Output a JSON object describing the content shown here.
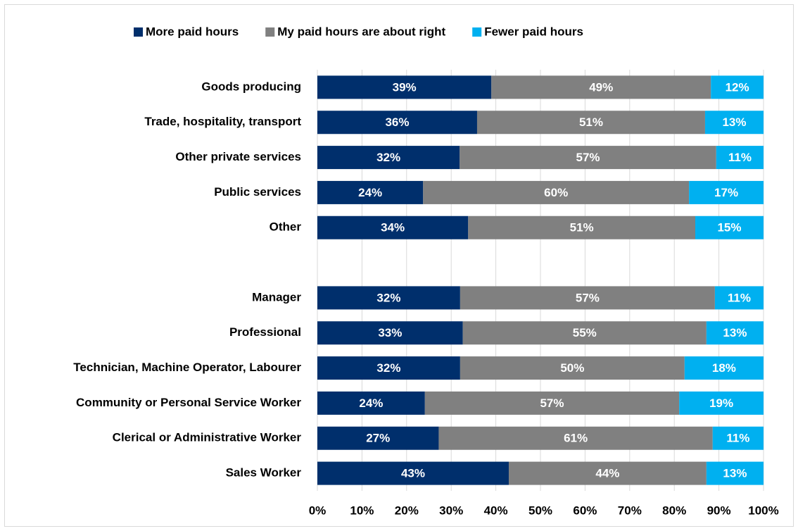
{
  "chart_data": {
    "type": "stacked_barh",
    "categories": [
      "Goods producing",
      "Trade, hospitality, transport",
      "Other private services",
      "Public services",
      "Other",
      null,
      "Manager",
      "Professional",
      "Technician, Machine Operator, Labourer",
      "Community or Personal Service Worker",
      "Clerical or Administrative Worker",
      "Sales Worker"
    ],
    "series": [
      {
        "name": "More paid hours",
        "color": "#002f6c",
        "values": [
          39,
          35.8,
          31.9,
          23.7,
          33.8,
          null,
          32.0,
          32.6,
          32.0,
          24.1,
          27.2,
          42.9
        ],
        "value_labels": [
          "39%",
          "36%",
          "32%",
          "24%",
          "34%",
          null,
          "32%",
          "33%",
          "32%",
          "24%",
          "27%",
          "43%"
        ]
      },
      {
        "name": "My paid hours are about right",
        "color": "#808080",
        "values": [
          49.2,
          51.1,
          57.5,
          59.6,
          50.9,
          null,
          57.1,
          54.6,
          50.3,
          57.0,
          61.4,
          44.3
        ],
        "value_labels": [
          "49%",
          "51%",
          "57%",
          "60%",
          "51%",
          null,
          "57%",
          "55%",
          "50%",
          "57%",
          "61%",
          "44%"
        ]
      },
      {
        "name": "Fewer paid hours",
        "color": "#00b0f0",
        "values": [
          11.8,
          13.1,
          10.6,
          16.7,
          15.3,
          null,
          10.9,
          12.8,
          17.7,
          18.9,
          11.4,
          12.8
        ],
        "value_labels": [
          "12%",
          "13%",
          "11%",
          "17%",
          "15%",
          null,
          "11%",
          "13%",
          "18%",
          "19%",
          "11%",
          "13%"
        ]
      }
    ],
    "xlim": [
      0,
      100
    ],
    "xticks": [
      {
        "value": 0,
        "label": "0%"
      },
      {
        "value": 10,
        "label": "10%"
      },
      {
        "value": 20,
        "label": "20%"
      },
      {
        "value": 30,
        "label": "30%"
      },
      {
        "value": 40,
        "label": "40%"
      },
      {
        "value": 50,
        "label": "50%"
      },
      {
        "value": 60,
        "label": "60%"
      },
      {
        "value": 70,
        "label": "70%"
      },
      {
        "value": 80,
        "label": "80%"
      },
      {
        "value": 90,
        "label": "90%"
      },
      {
        "value": 100,
        "label": "100%"
      }
    ],
    "grid": true,
    "legend": "top"
  }
}
